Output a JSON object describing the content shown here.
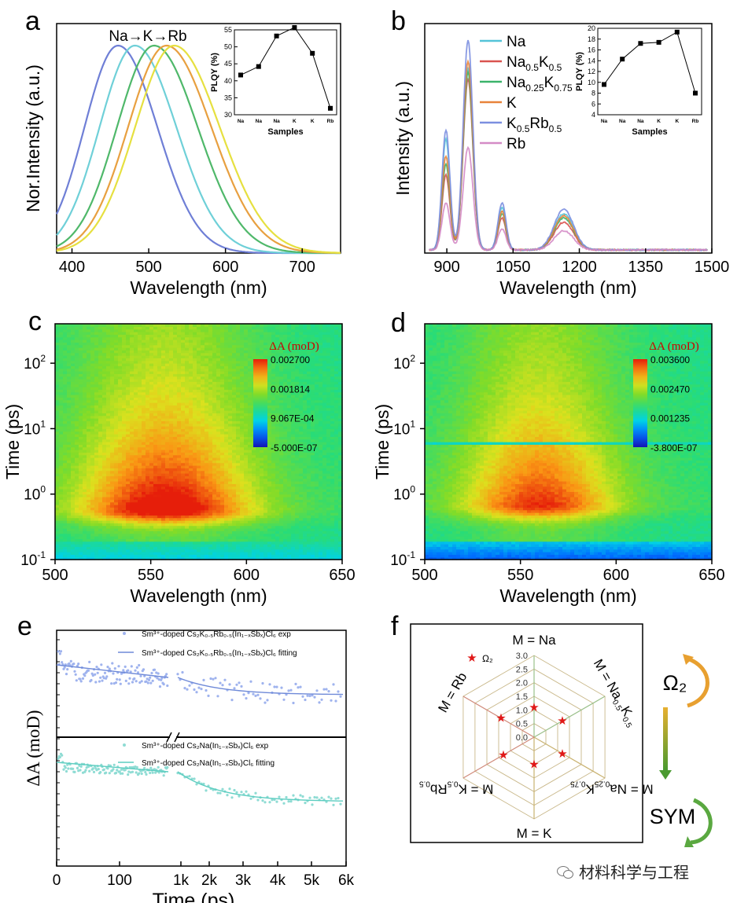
{
  "panels": {
    "a": "a",
    "b": "b",
    "c": "c",
    "d": "d",
    "e": "e",
    "f": "f"
  },
  "chart_data": [
    {
      "id": "a",
      "type": "line",
      "xlabel": "Wavelength (nm)",
      "ylabel": "Nor.Intensity (a.u.)",
      "xlim": [
        380,
        750
      ],
      "xticks": [
        400,
        500,
        600,
        700
      ],
      "annotation": "Na→K→Rb",
      "series": [
        {
          "peak": 460,
          "fwhm": 112,
          "color": "#6f7fd6"
        },
        {
          "peak": 482,
          "fwhm": 118,
          "color": "#6fd0d8"
        },
        {
          "peak": 507,
          "fwhm": 124,
          "color": "#4fb86a"
        },
        {
          "peak": 523,
          "fwhm": 128,
          "color": "#e8a040"
        },
        {
          "peak": 533,
          "fwhm": 130,
          "color": "#e6e040"
        }
      ],
      "inset": {
        "type": "line",
        "ylabel": "PLQY (%)",
        "xlabel": "Samples",
        "ylim": [
          30,
          55
        ],
        "yticks": [
          30,
          35,
          40,
          45,
          50,
          55
        ],
        "categories": [
          "Na",
          "Na0.5K0.5",
          "Na0.25K0.75",
          "K",
          "K0.5Rb0.5",
          "Rb"
        ],
        "tick_text": [
          "Na",
          "Na",
          "Na",
          "K",
          "K",
          "Rb"
        ],
        "values": [
          41.7,
          44.2,
          53.2,
          55.7,
          48.1,
          31.9
        ]
      }
    },
    {
      "id": "b",
      "type": "line",
      "xlabel": "Wavelength (nm)",
      "ylabel": "Intensity (a.u.)",
      "xlim": [
        850,
        1500
      ],
      "xticks": [
        900,
        1050,
        1200,
        1350,
        1500
      ],
      "legend": [
        {
          "name": "Na",
          "color": "#55c4d8"
        },
        {
          "name": "Na0.5K0.5",
          "main": "Na",
          "sub1": "0.5",
          "mid": "K",
          "sub2": "0.5",
          "color": "#d9534f"
        },
        {
          "name": "Na0.25K0.75",
          "main": "Na",
          "sub1": "0.25",
          "mid": "K",
          "sub2": "0.75",
          "color": "#3bb36a"
        },
        {
          "name": "K",
          "color": "#e8833a"
        },
        {
          "name": "K0.5Rb0.5",
          "main": "K",
          "sub1": "0.5",
          "mid": "Rb",
          "sub2": "0.5",
          "color": "#7c8fe0"
        },
        {
          "name": "Rb",
          "color": "#d48bc6"
        }
      ],
      "peaks": [
        {
          "center": 898,
          "width": 9,
          "amps": [
            0.52,
            0.35,
            0.4,
            0.44,
            0.56,
            0.22
          ]
        },
        {
          "center": 948,
          "width": 11,
          "amps": [
            0.85,
            0.8,
            0.83,
            0.88,
            0.98,
            0.48
          ]
        },
        {
          "center": 1025,
          "width": 9,
          "amps": [
            0.2,
            0.15,
            0.17,
            0.18,
            0.22,
            0.1
          ]
        },
        {
          "center": 1165,
          "width": 22,
          "amps": [
            0.17,
            0.13,
            0.15,
            0.16,
            0.19,
            0.09
          ]
        }
      ],
      "inset": {
        "type": "line",
        "ylabel": "PLQY (%)",
        "xlabel": "Samples",
        "ylim": [
          4,
          20
        ],
        "yticks": [
          4,
          6,
          8,
          10,
          12,
          14,
          16,
          18,
          20
        ],
        "categories": [
          "Na",
          "Na0.5K0.5",
          "Na0.25K0.75",
          "K",
          "K0.5Rb0.5",
          "Rb"
        ],
        "tick_text": [
          "Na",
          "Na",
          "Na",
          "K",
          "K",
          "Rb"
        ],
        "values": [
          9.6,
          14.3,
          17.2,
          17.4,
          19.3,
          8.0
        ]
      }
    },
    {
      "id": "c",
      "type": "heatmap",
      "xlabel": "Wavelength (nm)",
      "ylabel": "Time (ps)",
      "xlim": [
        500,
        650
      ],
      "xticks": [
        500,
        550,
        600,
        650
      ],
      "ylim": [
        0.1,
        400
      ],
      "yscale": "log",
      "yticks": [
        "10",
        "10",
        "10",
        "10"
      ],
      "yexp": [
        "-1",
        "0",
        "1",
        "2"
      ],
      "colorbar": {
        "title": "ΔA (moD)",
        "labels": [
          "0.002700",
          "0.001814",
          "9.067E-04",
          "-5.000E-07"
        ]
      },
      "peak_wavelength": 558,
      "peak_time": 0.6
    },
    {
      "id": "d",
      "type": "heatmap",
      "xlabel": "Wavelength (nm)",
      "ylabel": "Time (ps)",
      "xlim": [
        500,
        650
      ],
      "xticks": [
        500,
        550,
        600,
        650
      ],
      "ylim": [
        0.1,
        400
      ],
      "yscale": "log",
      "yticks": [
        "10",
        "10",
        "10",
        "10"
      ],
      "yexp": [
        "-1",
        "0",
        "1",
        "2"
      ],
      "colorbar": {
        "title": "ΔA (moD)",
        "labels": [
          "0.003600",
          "0.002470",
          "0.001235",
          "-3.800E-07"
        ]
      },
      "peak_wavelength": 560,
      "peak_time": 0.7
    },
    {
      "id": "e",
      "type": "scatter",
      "xlabel": "Time (ps)",
      "ylabel": "ΔA (moD)",
      "xticks": [
        "0",
        "100",
        "1k",
        "2k",
        "3k",
        "4k",
        "5k",
        "6k"
      ],
      "legend": [
        {
          "text": "Sm³⁺-doped Cs₂K₀.₅Rb₀.₅(In₁₋ₓSbₓ)Cl₆ exp",
          "color": "#9fb3ee"
        },
        {
          "text": "Sm³⁺-doped Cs₂K₀.₅Rb₀.₅(In₁₋ₓSbₓ)Cl₆ fitting",
          "color": "#6f8ad8"
        },
        {
          "text": "Sm³⁺-doped Cs₂Na(In₁₋ₓSbₓ)Cl₆ exp",
          "color": "#8fdcd4"
        },
        {
          "text": "Sm³⁺-doped Cs₂Na(In₁₋ₓSbₓ)Cl₆ fitting",
          "color": "#5ccdc0"
        }
      ]
    },
    {
      "id": "f",
      "type": "radar",
      "axes": [
        "M = Na",
        "M = Na0.5K0.5",
        "M = Na0.25K0.75",
        "M = K",
        "M = K0.5Rb0.5",
        "M = Rb"
      ],
      "axis_text": [
        "M = Na",
        "M = Na",
        "M = Na",
        "M = K",
        "M = K",
        "M = Rb"
      ],
      "rlim": [
        0,
        3.0
      ],
      "rticks": [
        "0.0",
        "0.5",
        "1.0",
        "1.5",
        "2.0",
        "2.5",
        "3.0"
      ],
      "legend": "Ω₂",
      "values": [
        1.1,
        1.2,
        1.2,
        1.0,
        1.3,
        1.4
      ],
      "side_labels": {
        "top": "Ω₂",
        "bottom": "SYM"
      }
    }
  ],
  "watermark": "材料科学与工程"
}
